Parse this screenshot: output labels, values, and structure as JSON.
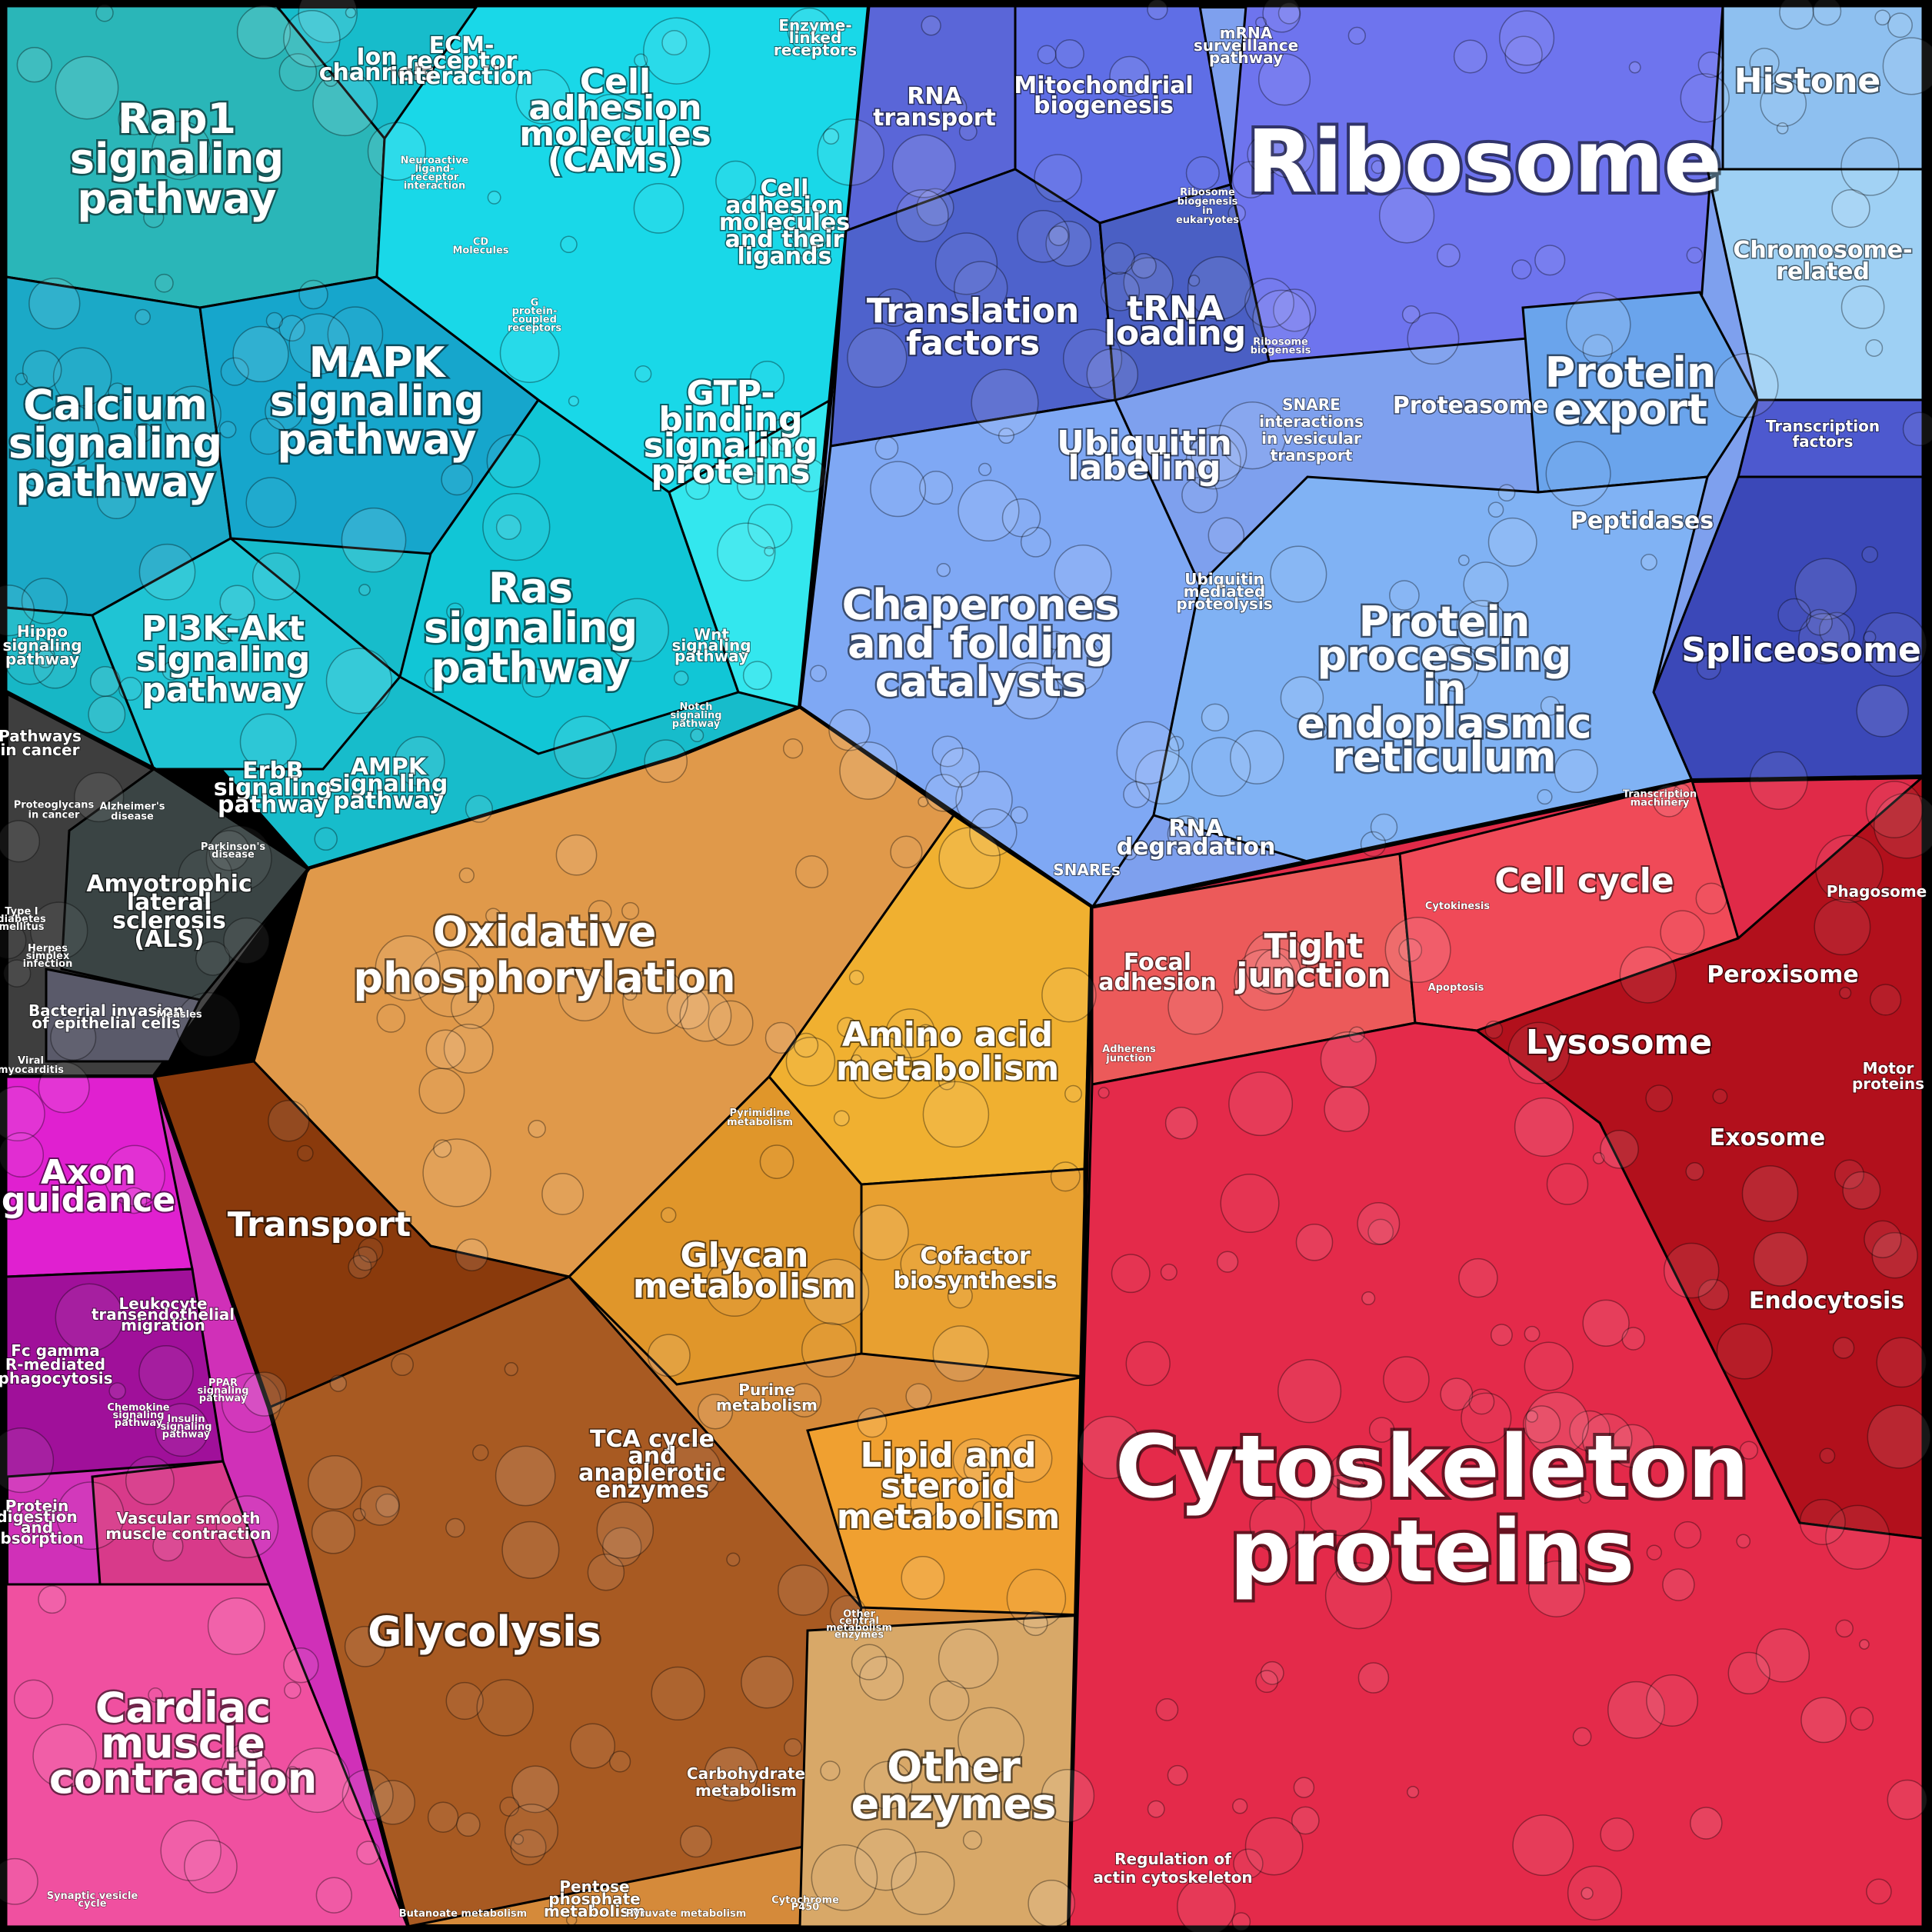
{
  "regions": [
    {
      "id": "signaling",
      "color": "#14c4d2"
    },
    {
      "id": "protein",
      "color": "#6f8ff0"
    },
    {
      "id": "metabolism",
      "color": "#d88a3a"
    },
    {
      "id": "cellular",
      "color": "#e3304f"
    },
    {
      "id": "disease",
      "color": "#444444"
    },
    {
      "id": "organismal",
      "color": "#e040c0"
    }
  ],
  "labels": {
    "rap1": [
      "Rap1",
      "signaling",
      "pathway"
    ],
    "calcium": [
      "Calcium",
      "signaling",
      "pathway"
    ],
    "mapk": [
      "MAPK",
      "signaling",
      "pathway"
    ],
    "ras": [
      "Ras",
      "signaling",
      "pathway"
    ],
    "pi3k": [
      "PI3K-Akt",
      "signaling",
      "pathway"
    ],
    "cams": [
      "Cell",
      "adhesion",
      "molecules",
      "(CAMs)"
    ],
    "gtp": [
      "GTP-",
      "binding",
      "signaling",
      "proteins"
    ],
    "camlig": [
      "Cell",
      "adhesion",
      "molecules",
      "and their",
      "ligands"
    ],
    "ion": [
      "Ion",
      "channels"
    ],
    "ecm": [
      "ECM-",
      "receptor",
      "interaction"
    ],
    "enzlinked": [
      "Enzyme-",
      "linked",
      "receptors"
    ],
    "hippo": [
      "Hippo",
      "signaling",
      "pathway"
    ],
    "erbb": [
      "ErbB",
      "signaling",
      "pathway"
    ],
    "ampk": [
      "AMPK",
      "signaling",
      "pathway"
    ],
    "wnt": [
      "Wnt",
      "signaling",
      "pathway"
    ],
    "notch": [
      "Notch",
      "signaling",
      "pathway"
    ],
    "neuroactive": [
      "Neuroactive",
      "ligand-",
      "receptor",
      "interaction"
    ],
    "cdmol": [
      "CD",
      "Molecules"
    ],
    "gpcr": [
      "G",
      "protein-",
      "coupled",
      "receptors"
    ],
    "rna_transport": [
      "RNA",
      "transport"
    ],
    "mito": [
      "Mitochondrial",
      "biogenesis"
    ],
    "mrna": [
      "mRNA",
      "surveillance",
      "pathway"
    ],
    "ribosome": [
      "Ribosome"
    ],
    "ribo_bio_euk": [
      "Ribosome",
      "biogenesis",
      "in",
      "eukaryotes"
    ],
    "ribo_bio": [
      "Ribosome",
      "biogenesis"
    ],
    "translation": [
      "Translation",
      "factors"
    ],
    "trna": [
      "tRNA",
      "loading"
    ],
    "histone": [
      "Histone"
    ],
    "chromosome": [
      "Chromosome-",
      "related"
    ],
    "protein_export": [
      "Protein",
      "export"
    ],
    "proteasome": [
      "Proteasome"
    ],
    "snare_vt": [
      "SNARE",
      "interactions",
      "in vesicular",
      "transport"
    ],
    "ubiquitin": [
      "Ubiquitin",
      "labeling"
    ],
    "ub_prot": [
      "Ubiquitin",
      "mediated",
      "proteolysis"
    ],
    "peptidases": [
      "Peptidases"
    ],
    "transcription": [
      "Transcription",
      "factors"
    ],
    "spliceosome": [
      "Spliceosome"
    ],
    "chaperones": [
      "Chaperones",
      "and folding",
      "catalysts"
    ],
    "er": [
      "Protein",
      "processing",
      "in",
      "endoplasmic",
      "reticulum"
    ],
    "rna_deg": [
      "RNA",
      "degradation"
    ],
    "snares": [
      "SNAREs"
    ],
    "trans_mach": [
      "Transcription",
      "machinery"
    ],
    "pathways_cancer": [
      "Pathways",
      "in cancer"
    ],
    "proteoglycans": [
      "Proteoglycans",
      "in cancer"
    ],
    "alzheimer": [
      "Alzheimer's",
      "disease"
    ],
    "parkinson": [
      "Parkinson's",
      "disease"
    ],
    "als": [
      "Amyotrophic",
      "lateral",
      "sclerosis",
      "(ALS)"
    ],
    "t1d": [
      "Type I",
      "diabetes",
      "mellitus"
    ],
    "herpes": [
      "Herpes",
      "simplex",
      "infection"
    ],
    "bacterial": [
      "Bacterial invasion",
      "of epithelial cells"
    ],
    "measles": [
      "Measles"
    ],
    "viral": [
      "Viral",
      "myocarditis"
    ],
    "oxphos": [
      "Oxidative",
      "phosphorylation"
    ],
    "amino": [
      "Amino acid",
      "metabolism"
    ],
    "pyrimidine": [
      "Pyrimidine",
      "metabolism"
    ],
    "glycan": [
      "Glycan",
      "metabolism"
    ],
    "cofactor": [
      "Cofactor",
      "biosynthesis"
    ],
    "transport": [
      "Transport"
    ],
    "purine": [
      "Purine",
      "metabolism"
    ],
    "tca": [
      "TCA cycle",
      "and",
      "anaplerotic",
      "enzymes"
    ],
    "lipid": [
      "Lipid and",
      "steroid",
      "metabolism"
    ],
    "glycolysis": [
      "Glycolysis"
    ],
    "other_central": [
      "Other",
      "central",
      "metabolism",
      "enzymes"
    ],
    "carbohydrate": [
      "Carbohydrate",
      "metabolism"
    ],
    "other_enzymes": [
      "Other",
      "enzymes"
    ],
    "butanoate": [
      "Butanoate metabolism"
    ],
    "pentose": [
      "Pentose",
      "phosphate",
      "metabolism"
    ],
    "pyruvate": [
      "Pyruvate metabolism"
    ],
    "cytochrome": [
      "Cytochrome",
      "P450"
    ],
    "axon": [
      "Axon",
      "guidance"
    ],
    "leukocyte": [
      "Leukocyte",
      "transendothelial",
      "migration"
    ],
    "fcgamma": [
      "Fc gamma",
      "R-mediated",
      "phagocytosis"
    ],
    "chemokine": [
      "Chemokine",
      "signaling",
      "pathway"
    ],
    "ppar": [
      "PPAR",
      "signaling",
      "pathway"
    ],
    "insulin": [
      "Insulin",
      "signaling",
      "pathway"
    ],
    "protein_dig": [
      "Protein",
      "digestion",
      "and",
      "absorption"
    ],
    "vascular": [
      "Vascular smooth",
      "muscle contraction"
    ],
    "cardiac": [
      "Cardiac",
      "muscle",
      "contraction"
    ],
    "synaptic": [
      "Synaptic vesicle",
      "cycle"
    ],
    "cell_cycle": [
      "Cell cycle"
    ],
    "cytokinesis": [
      "Cytokinesis"
    ],
    "apoptosis": [
      "Apoptosis"
    ],
    "focal": [
      "Focal",
      "adhesion"
    ],
    "tight": [
      "Tight",
      "junction"
    ],
    "adherens": [
      "Adherens",
      "junction"
    ],
    "phagosome": [
      "Phagosome"
    ],
    "peroxisome": [
      "Peroxisome"
    ],
    "lysosome": [
      "Lysosome"
    ],
    "motor": [
      "Motor",
      "proteins"
    ],
    "exosome": [
      "Exosome"
    ],
    "endocytosis": [
      "Endocytosis"
    ],
    "cytoskeleton": [
      "Cytoskeleton",
      "proteins"
    ],
    "regulation_actin": [
      "Regulation of",
      "actin cytoskeleton"
    ]
  }
}
